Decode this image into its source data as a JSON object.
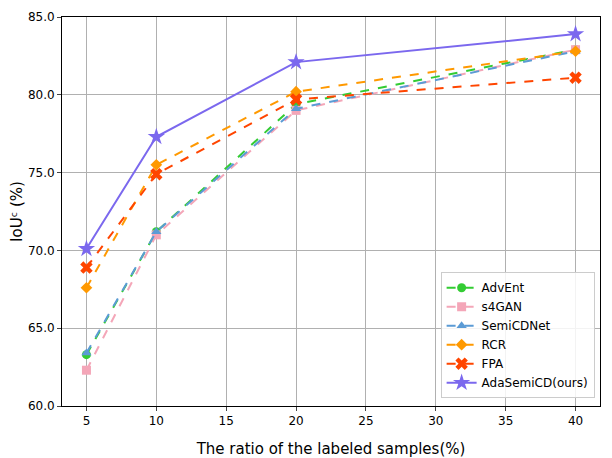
{
  "chart_data": {
    "type": "line",
    "x_label": "The ratio of the labeled samples(%)",
    "y_label": "IoUᶜ (%)",
    "x": [
      5,
      10,
      20,
      40
    ],
    "series": [
      {
        "name": "AdvEnt",
        "color": "#33cc33",
        "marker": "circle",
        "line_style": "dash",
        "values": [
          63.3,
          71.2,
          79.4,
          82.9
        ]
      },
      {
        "name": "s4GAN",
        "color": "#f4a6b8",
        "marker": "square",
        "line_style": "dash",
        "values": [
          62.3,
          71.0,
          79.0,
          82.9
        ]
      },
      {
        "name": "SemiCDNet",
        "color": "#5b9bd5",
        "marker": "triangle-up",
        "line_style": "dash",
        "values": [
          63.4,
          71.2,
          79.1,
          82.8
        ]
      },
      {
        "name": "RCR",
        "color": "#ff9900",
        "marker": "diamond",
        "line_style": "dash",
        "values": [
          67.6,
          75.5,
          80.2,
          82.8
        ]
      },
      {
        "name": "FPA",
        "color": "#ff4500",
        "marker": "x",
        "line_style": "dash",
        "values": [
          68.9,
          74.9,
          79.7,
          81.1
        ]
      },
      {
        "name": "AdaSemiCD(ours)",
        "color": "#7b68ee",
        "marker": "star",
        "line_style": "solid",
        "values": [
          70.1,
          77.3,
          82.1,
          83.9
        ]
      }
    ],
    "xlim": [
      3.25,
      41.75
    ],
    "xticks": [
      5,
      10,
      15,
      20,
      25,
      30,
      35,
      40
    ],
    "ylim": [
      60,
      85
    ],
    "yticks": [
      {
        "value": 60,
        "label": "60.0"
      },
      {
        "value": 65,
        "label": "65.0"
      },
      {
        "value": 70,
        "label": "70.0"
      },
      {
        "value": 75,
        "label": "75.0"
      },
      {
        "value": 80,
        "label": "80.0"
      },
      {
        "value": 85,
        "label": "85.0"
      }
    ],
    "grid": true,
    "legend": "lower right"
  }
}
